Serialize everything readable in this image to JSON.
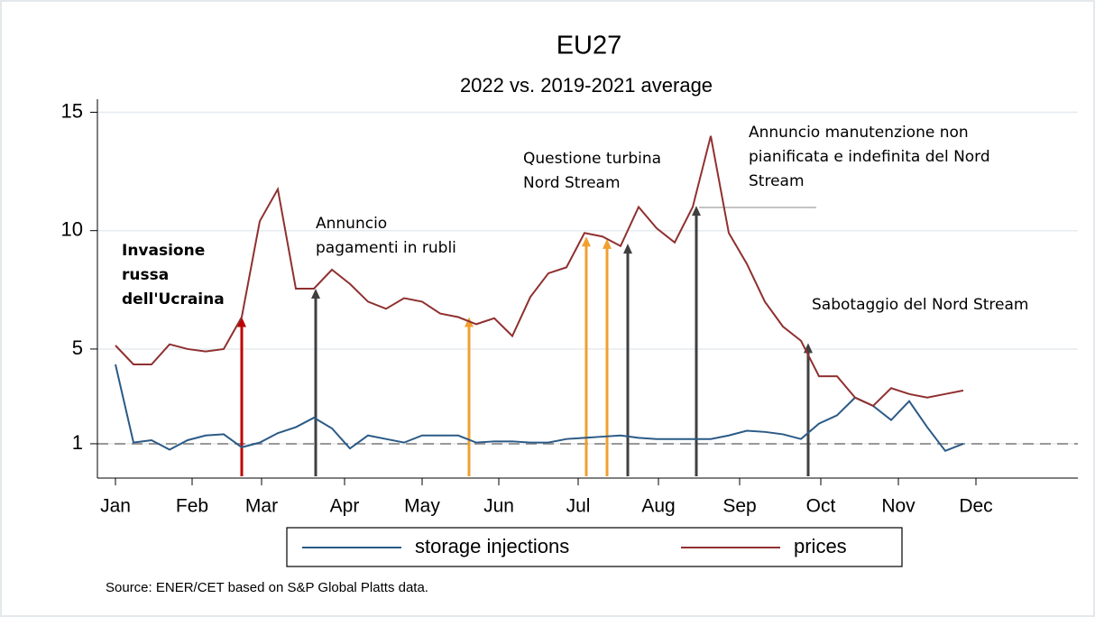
{
  "chart_data": {
    "type": "line",
    "title": "EU27",
    "subtitle": "2022 vs. 2019-2021 average",
    "source": "Source: ENER/CET based on S&P Global Platts data.",
    "x": [
      1,
      2,
      3,
      4,
      5,
      6,
      7,
      8,
      9,
      10,
      11,
      12,
      13,
      14,
      15,
      16,
      17,
      18,
      19,
      20,
      21,
      22,
      23,
      24,
      25,
      26,
      27,
      28,
      29,
      30,
      31,
      32,
      33,
      34,
      35,
      36,
      37,
      38,
      39,
      40,
      41,
      42,
      43,
      44,
      45,
      46,
      47,
      48
    ],
    "series": [
      {
        "name": "storage injections",
        "color": "#2b5a86",
        "values": [
          4.35,
          1.05,
          1.15,
          0.75,
          1.15,
          1.35,
          1.4,
          0.85,
          1.05,
          1.45,
          1.7,
          2.1,
          1.65,
          0.8,
          1.35,
          1.2,
          1.05,
          1.35,
          1.35,
          1.35,
          1.05,
          1.1,
          1.1,
          1.05,
          1.05,
          1.2,
          1.25,
          1.3,
          1.35,
          1.25,
          1.2,
          1.2,
          1.2,
          1.2,
          1.35,
          1.55,
          1.5,
          1.4,
          1.2,
          1.85,
          2.2,
          2.95,
          2.6,
          2.0,
          2.8,
          1.7,
          0.7,
          1.0
        ]
      },
      {
        "name": "prices",
        "color": "#903030",
        "values": [
          5.15,
          4.35,
          4.35,
          5.2,
          5.0,
          4.9,
          5.0,
          6.35,
          10.4,
          11.75,
          7.55,
          7.55,
          8.35,
          7.75,
          7.0,
          6.7,
          7.15,
          7.0,
          6.5,
          6.35,
          6.05,
          6.3,
          5.55,
          7.2,
          8.2,
          8.45,
          9.9,
          9.75,
          9.35,
          11.0,
          10.1,
          9.5,
          11.0,
          14.0,
          9.9,
          8.6,
          7.0,
          5.95,
          5.35,
          3.85,
          3.85,
          2.95,
          2.6,
          3.35,
          3.1,
          2.95,
          3.1,
          3.25
        ]
      }
    ],
    "xlim": [
      0,
      54.35
    ],
    "xticks": [
      {
        "value": 1,
        "label": "Jan"
      },
      {
        "value": 5.25,
        "label": "Feb"
      },
      {
        "value": 9.1,
        "label": "Mar"
      },
      {
        "value": 13.7,
        "label": "Apr"
      },
      {
        "value": 18,
        "label": "May"
      },
      {
        "value": 22.25,
        "label": "Jun"
      },
      {
        "value": 26.65,
        "label": "Jul"
      },
      {
        "value": 31.1,
        "label": "Aug"
      },
      {
        "value": 35.6,
        "label": "Sep"
      },
      {
        "value": 40.1,
        "label": "Oct"
      },
      {
        "value": 44.4,
        "label": "Nov"
      },
      {
        "value": 48.7,
        "label": "Dec"
      }
    ],
    "ylim": [
      -0.45,
      15.55
    ],
    "yticks": [
      1,
      5,
      10,
      15
    ],
    "grid": true,
    "reference_line": 1,
    "legend": "bottom",
    "arrows": [
      {
        "x": 8,
        "y": 6.35,
        "color": "#c00000"
      },
      {
        "x": 12.1,
        "y": 7.55,
        "color": "#404040"
      },
      {
        "x": 20.6,
        "y": 6.35,
        "color": "#f0a030"
      },
      {
        "x": 27.1,
        "y": 9.75,
        "color": "#f0a030"
      },
      {
        "x": 28.25,
        "y": 9.65,
        "color": "#f0a030"
      },
      {
        "x": 29.4,
        "y": 9.45,
        "color": "#404040"
      },
      {
        "x": 33.2,
        "y": 11.05,
        "color": "#404040"
      },
      {
        "x": 39.4,
        "y": 5.25,
        "color": "#404040"
      }
    ],
    "annotations": [
      {
        "lines": [
          "Invasione",
          "russa",
          "dell'Ucraina"
        ],
        "color": "#e02020"
      },
      {
        "lines": [
          "Annuncio",
          "pagamenti in rubli"
        ],
        "color": "#000000"
      },
      {
        "lines": [
          "Questione turbina",
          "Nord Stream"
        ],
        "color": "#000000"
      },
      {
        "lines": [
          "Annuncio manutenzione non",
          "pianificata e indefinita del Nord",
          "Stream"
        ],
        "color": "#000000"
      },
      {
        "lines": [
          "Sabotaggio del Nord Stream"
        ],
        "color": "#000000"
      }
    ]
  }
}
